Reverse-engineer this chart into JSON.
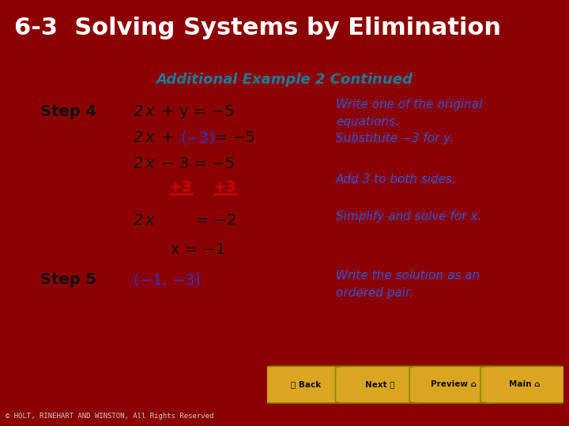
{
  "title": "6-3  Solving Systems by Elimination",
  "title_bg": "#6B0000",
  "title_color": "#FFFFFF",
  "subtitle": "Additional Example 2 Continued",
  "subtitle_color": "#1a7a9a",
  "main_bg": "#FFFFFF",
  "outer_bg": "#8B0000",
  "footer_bg": "#111111",
  "footer_text": "© HOLT, RINEHART AND WINSTON, All Rights Reserved",
  "footer_color": "#CCCCCC",
  "black": "#111111",
  "red": "#CC0000",
  "blue_purple": "#3333BB",
  "italic_blue": "#3355CC",
  "btn_color": "#DAA520",
  "btn_labels": [
    "〈 Back",
    "Next 〉",
    "Preview ⌂",
    "Main ⌂"
  ]
}
